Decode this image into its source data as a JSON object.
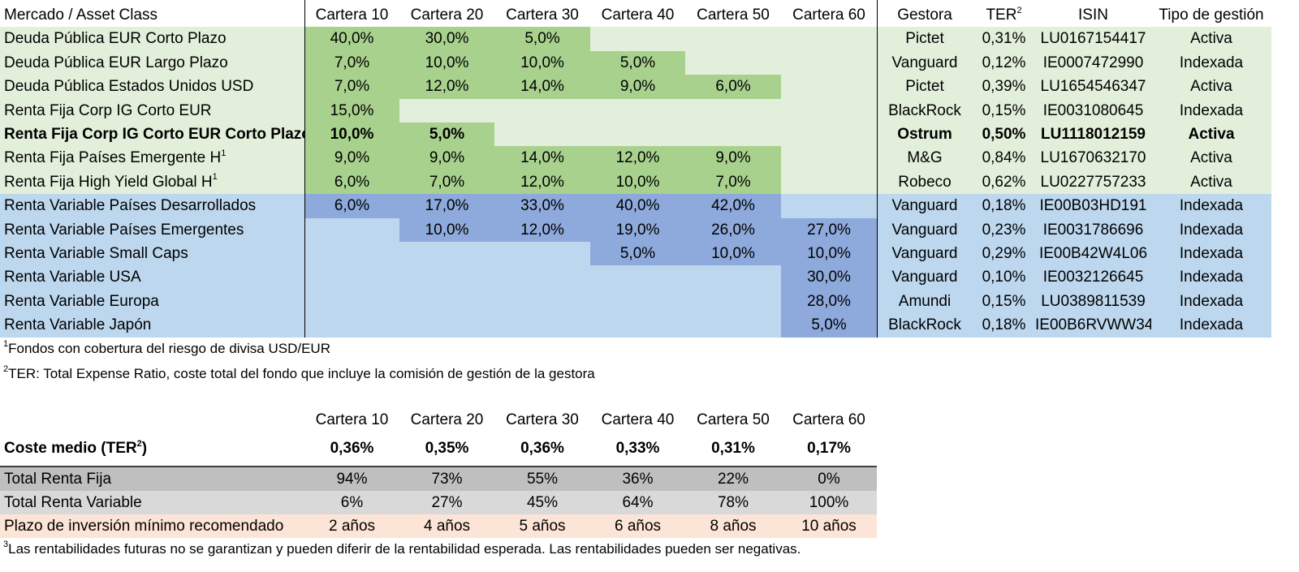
{
  "main_table": {
    "headers": [
      "Mercado / Asset Class",
      "Cartera 10",
      "Cartera 20",
      "Cartera 30",
      "Cartera 40",
      "Cartera 50",
      "Cartera 60",
      "Gestora",
      "TER",
      "ISIN",
      "Tipo de gestión"
    ],
    "ter_sup": "2",
    "rows": [
      {
        "label": "Deuda Pública EUR Corto Plazo",
        "sup": "",
        "bold": false,
        "group": "rf",
        "values": [
          "40,0%",
          "30,0%",
          "5,0%",
          "",
          "",
          ""
        ],
        "gestora": "Pictet",
        "ter": "0,31%",
        "isin": "LU0167154417",
        "tipo": "Activa"
      },
      {
        "label": "Deuda Pública EUR Largo Plazo",
        "sup": "",
        "bold": false,
        "group": "rf",
        "values": [
          "7,0%",
          "10,0%",
          "10,0%",
          "5,0%",
          "",
          ""
        ],
        "gestora": "Vanguard",
        "ter": "0,12%",
        "isin": "IE0007472990",
        "tipo": "Indexada"
      },
      {
        "label": "Deuda Pública Estados Unidos USD",
        "sup": "",
        "bold": false,
        "group": "rf",
        "values": [
          "7,0%",
          "12,0%",
          "14,0%",
          "9,0%",
          "6,0%",
          ""
        ],
        "gestora": "Pictet",
        "ter": "0,39%",
        "isin": "LU1654546347",
        "tipo": "Activa"
      },
      {
        "label": "Renta Fija Corp IG Corto EUR",
        "sup": "",
        "bold": false,
        "group": "rf",
        "values": [
          "15,0%",
          "",
          "",
          "",
          "",
          ""
        ],
        "gestora": "BlackRock",
        "ter": "0,15%",
        "isin": "IE0031080645",
        "tipo": "Indexada"
      },
      {
        "label": "Renta Fija Corp IG Corto EUR Corto Plazo",
        "sup": "",
        "bold": true,
        "group": "rf",
        "values": [
          "10,0%",
          "5,0%",
          "",
          "",
          "",
          ""
        ],
        "gestora": "Ostrum",
        "ter": "0,50%",
        "isin": "LU1118012159",
        "tipo": "Activa"
      },
      {
        "label": "Renta Fija Países Emergente H",
        "sup": "1",
        "bold": false,
        "group": "rf",
        "values": [
          "9,0%",
          "9,0%",
          "14,0%",
          "12,0%",
          "9,0%",
          ""
        ],
        "gestora": "M&G",
        "ter": "0,84%",
        "isin": "LU1670632170",
        "tipo": "Activa"
      },
      {
        "label": "Renta Fija High Yield Global H",
        "sup": "1",
        "bold": false,
        "group": "rf",
        "values": [
          "6,0%",
          "7,0%",
          "12,0%",
          "10,0%",
          "7,0%",
          ""
        ],
        "gestora": "Robeco",
        "ter": "0,62%",
        "isin": "LU0227757233",
        "tipo": "Activa"
      },
      {
        "label": "Renta Variable Países Desarrollados",
        "sup": "",
        "bold": false,
        "group": "rv",
        "values": [
          "6,0%",
          "17,0%",
          "33,0%",
          "40,0%",
          "42,0%",
          ""
        ],
        "gestora": "Vanguard",
        "ter": "0,18%",
        "isin": "IE00B03HD191",
        "tipo": "Indexada"
      },
      {
        "label": "Renta Variable Países Emergentes",
        "sup": "",
        "bold": false,
        "group": "rv",
        "values": [
          "",
          "10,0%",
          "12,0%",
          "19,0%",
          "26,0%",
          "27,0%"
        ],
        "gestora": "Vanguard",
        "ter": "0,23%",
        "isin": "IE0031786696",
        "tipo": "Indexada"
      },
      {
        "label": "Renta Variable Small Caps",
        "sup": "",
        "bold": false,
        "group": "rv",
        "values": [
          "",
          "",
          "",
          "5,0%",
          "10,0%",
          "10,0%"
        ],
        "gestora": "Vanguard",
        "ter": "0,29%",
        "isin": "IE00B42W4L06",
        "tipo": "Indexada"
      },
      {
        "label": "Renta Variable USA",
        "sup": "",
        "bold": false,
        "group": "rv",
        "values": [
          "",
          "",
          "",
          "",
          "",
          "30,0%"
        ],
        "gestora": "Vanguard",
        "ter": "0,10%",
        "isin": "IE0032126645",
        "tipo": "Indexada"
      },
      {
        "label": "Renta Variable Europa",
        "sup": "",
        "bold": false,
        "group": "rv",
        "values": [
          "",
          "",
          "",
          "",
          "",
          "28,0%"
        ],
        "gestora": "Amundi",
        "ter": "0,15%",
        "isin": "LU0389811539",
        "tipo": "Indexada"
      },
      {
        "label": "Renta Variable Japón",
        "sup": "",
        "bold": false,
        "group": "rv",
        "values": [
          "",
          "",
          "",
          "",
          "",
          "5,0%"
        ],
        "gestora": "BlackRock",
        "ter": "0,18%",
        "isin": "IE00B6RVWW34",
        "tipo": "Indexada"
      }
    ]
  },
  "notes": [
    {
      "sup": "1",
      "text": "Fondos con cobertura del riesgo de divisa USD/EUR"
    },
    {
      "sup": "2",
      "text": "TER: Total Expense Ratio, coste total del fondo que incluye la comisión de gestión de la gestora"
    }
  ],
  "summary_table": {
    "headers": [
      "Cartera 10",
      "Cartera 20",
      "Cartera 30",
      "Cartera 40",
      "Cartera 50",
      "Cartera 60"
    ],
    "coste_label": "Coste medio (TER",
    "coste_sup": "2",
    "coste_label_end": ")",
    "coste_values": [
      "0,36%",
      "0,35%",
      "0,36%",
      "0,33%",
      "0,31%",
      "0,17%"
    ],
    "total_rf_label": "Total Renta Fija",
    "total_rf_values": [
      "94%",
      "73%",
      "55%",
      "36%",
      "22%",
      "0%"
    ],
    "total_rv_label": "Total Renta Variable",
    "total_rv_values": [
      "6%",
      "27%",
      "45%",
      "64%",
      "78%",
      "100%"
    ],
    "plazo_label": "Plazo de inversión mínimo recomendado",
    "plazo_values": [
      "2 años",
      "4 años",
      "5 años",
      "6 años",
      "8 años",
      "10 años"
    ]
  },
  "footnote3": {
    "sup": "3",
    "text": "Las rentabilidades futuras no se garantizan y pueden diferir de la rentabilidad esperada. Las rentabilidades pueden ser negativas."
  },
  "colors": {
    "rf_light": "#e2efda",
    "rf_dark": "#a9d18e",
    "rv_light": "#bdd7ee",
    "rv_dark": "#8ea9db",
    "total_rf_bg": "#bfbfbf",
    "total_rv_bg": "#d9d9d9",
    "plazo_bg": "#fce4d6"
  }
}
